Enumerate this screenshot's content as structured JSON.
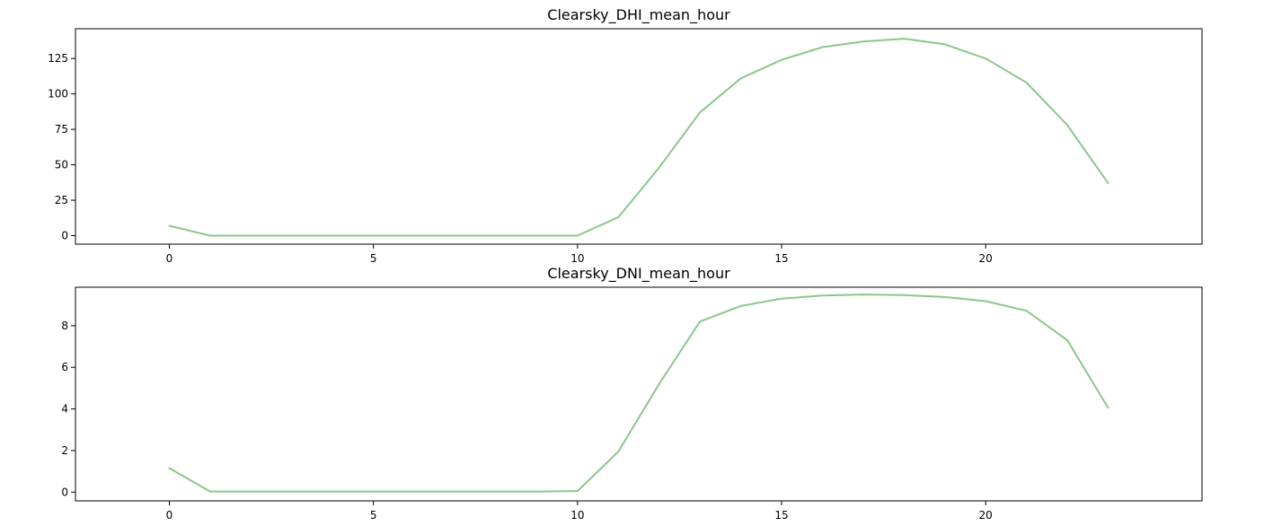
{
  "chart_data": [
    {
      "type": "line",
      "title": "Clearsky_DHI_mean_hour",
      "xlabel": "",
      "ylabel": "",
      "x": [
        0,
        1,
        2,
        3,
        4,
        5,
        6,
        7,
        8,
        9,
        10,
        11,
        12,
        13,
        14,
        15,
        16,
        17,
        18,
        19,
        20,
        21,
        22,
        23
      ],
      "series": [
        {
          "values": [
            7,
            0,
            0,
            0,
            0,
            0,
            0,
            0,
            0,
            0,
            0,
            13,
            48,
            87,
            111,
            124,
            133,
            137,
            139,
            135,
            125,
            108,
            78,
            37
          ],
          "color": "#8cc68c"
        }
      ],
      "xlim": [
        -2.3,
        25.3
      ],
      "ylim": [
        -6,
        146
      ],
      "xticks": [
        0,
        5,
        10,
        15,
        20
      ],
      "yticks": [
        0,
        25,
        50,
        75,
        100,
        125
      ],
      "grid": false
    },
    {
      "type": "line",
      "title": "Clearsky_DNI_mean_hour",
      "xlabel": "",
      "ylabel": "",
      "x": [
        0,
        1,
        2,
        3,
        4,
        5,
        6,
        7,
        8,
        9,
        10,
        11,
        12,
        13,
        14,
        15,
        16,
        17,
        18,
        19,
        20,
        21,
        22,
        23
      ],
      "series": [
        {
          "values": [
            1.15,
            0.03,
            0.03,
            0.03,
            0.03,
            0.03,
            0.03,
            0.03,
            0.03,
            0.03,
            0.05,
            1.95,
            5.2,
            8.2,
            8.95,
            9.3,
            9.45,
            9.5,
            9.47,
            9.38,
            9.18,
            8.72,
            7.3,
            4.05
          ],
          "color": "#8cc68c"
        }
      ],
      "xlim": [
        -2.3,
        25.3
      ],
      "ylim": [
        -0.42,
        9.85
      ],
      "xticks": [
        0,
        5,
        10,
        15,
        20
      ],
      "yticks": [
        0,
        2,
        4,
        6,
        8
      ],
      "grid": false
    }
  ]
}
